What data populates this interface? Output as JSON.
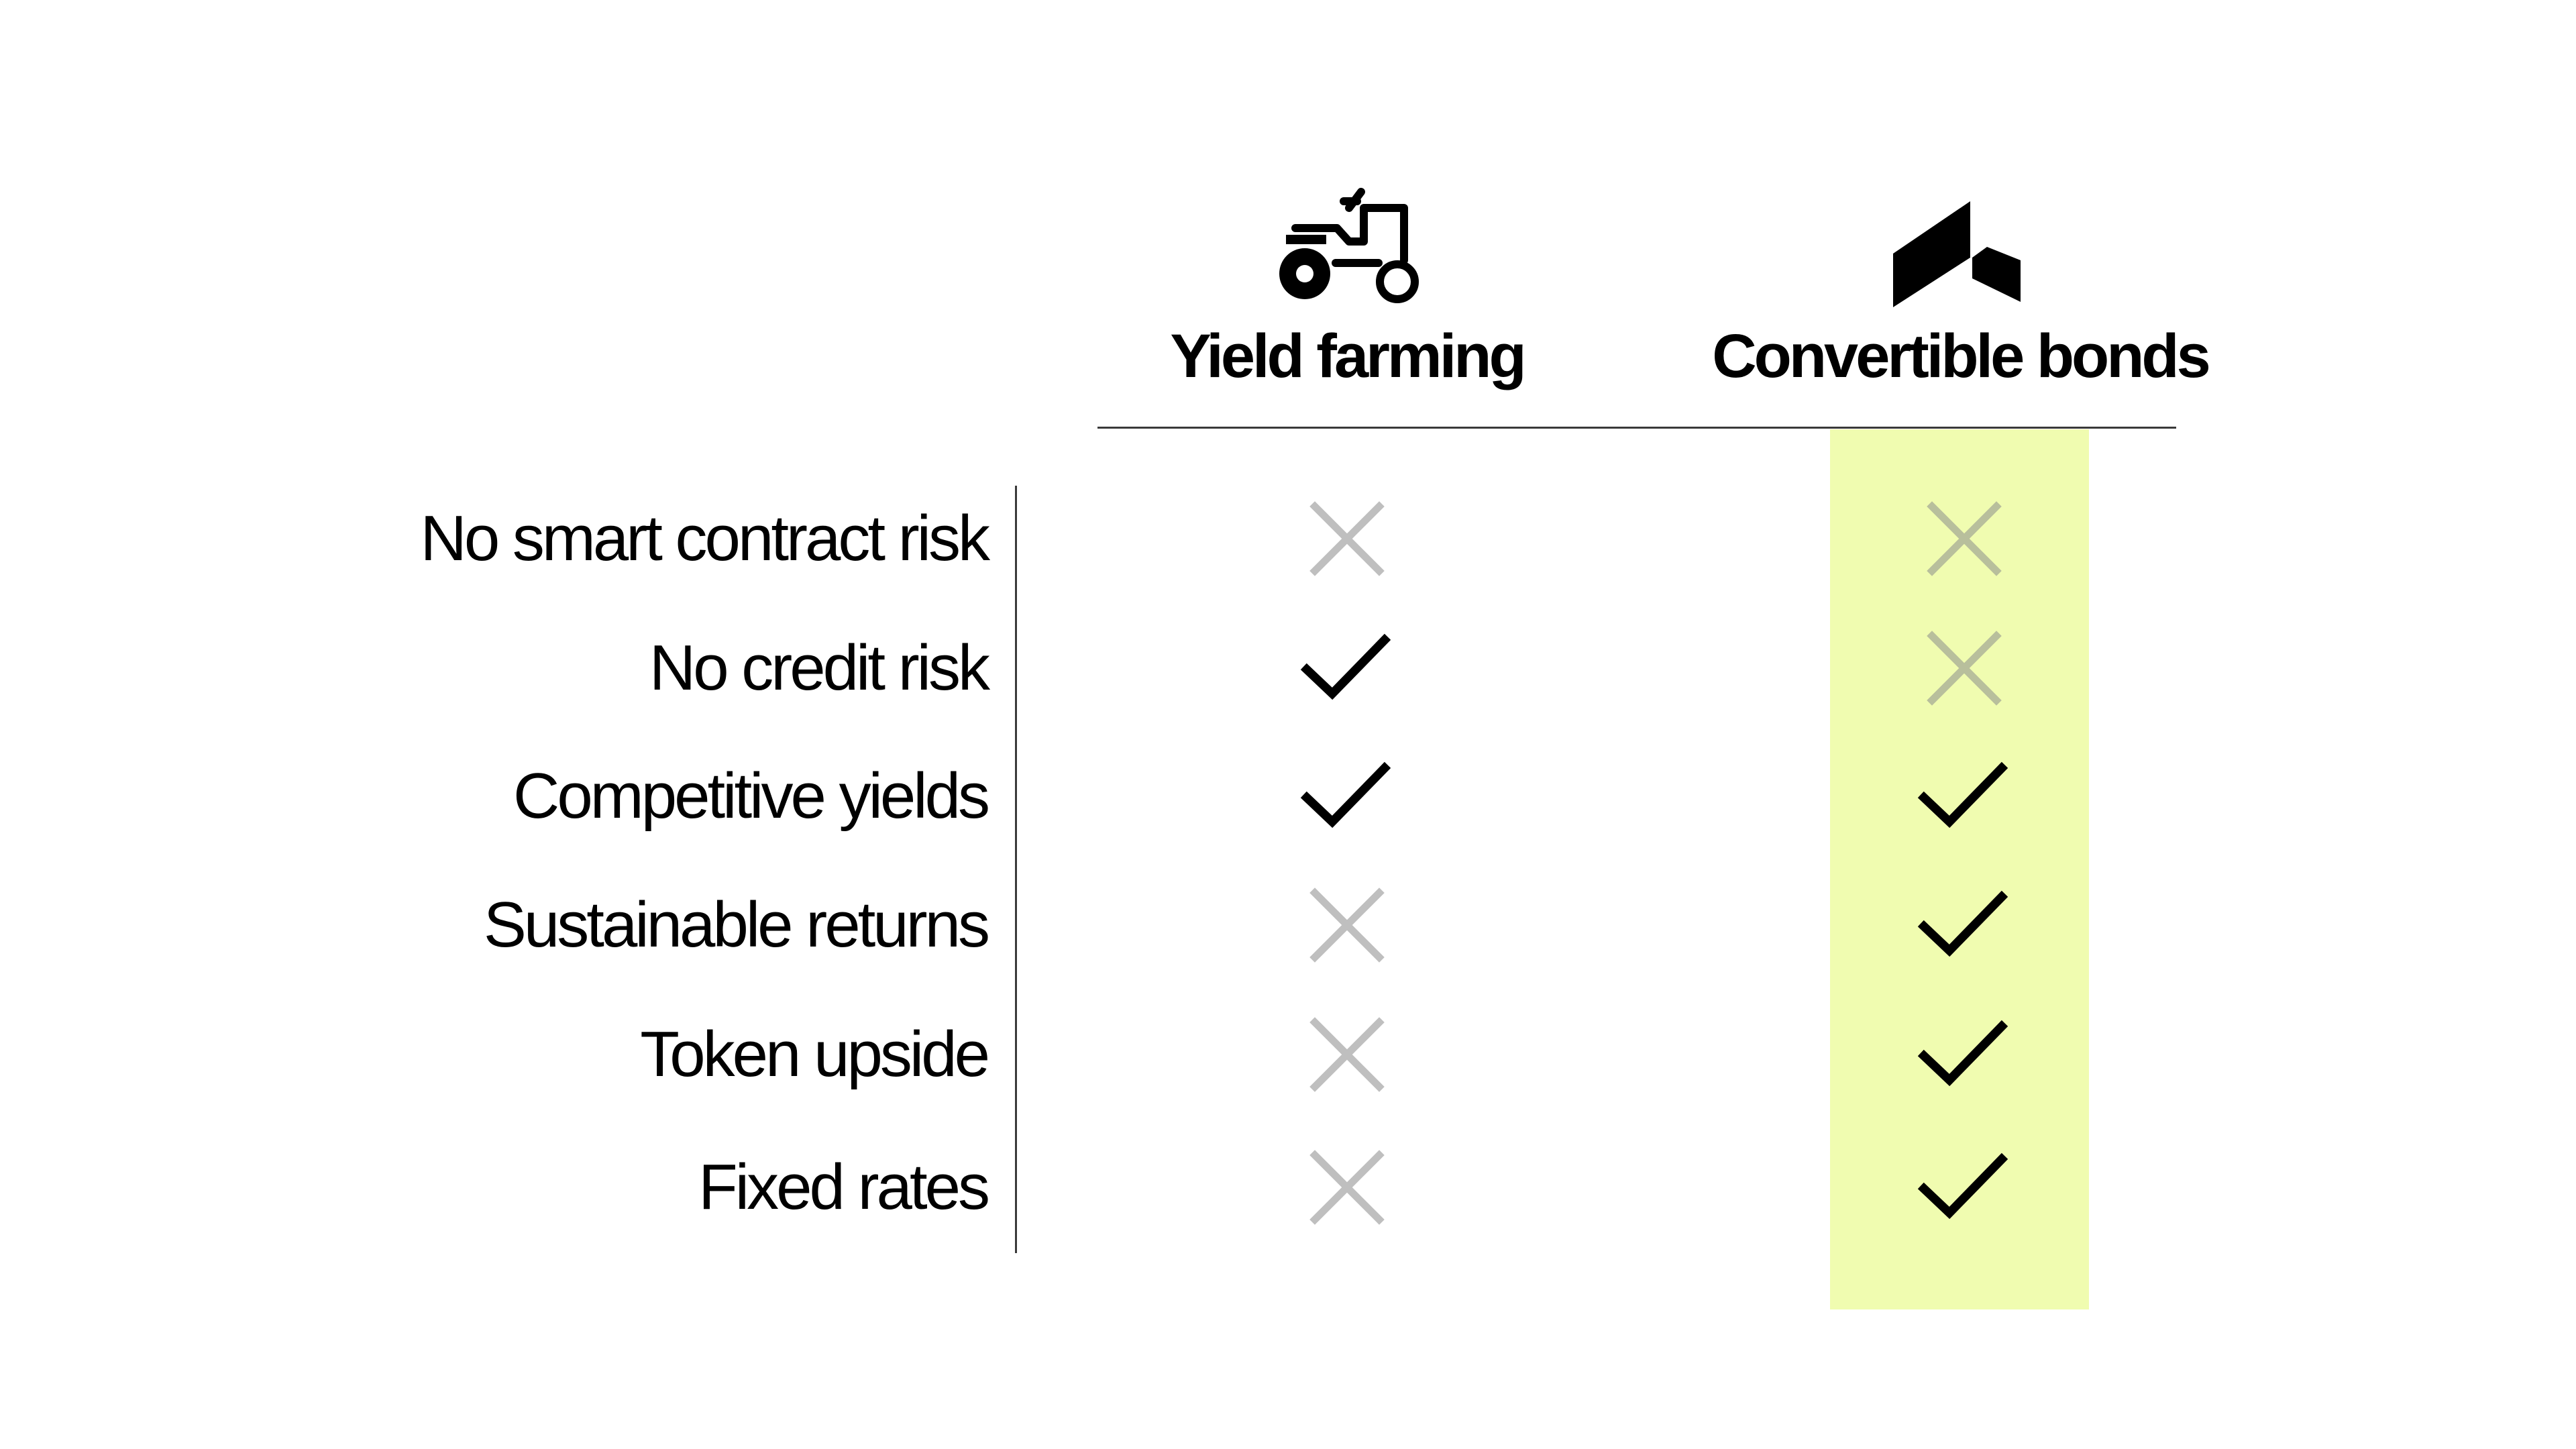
{
  "colors": {
    "highlight": "#f0fcb0",
    "check": "#000000",
    "cross": "#bfbfbf",
    "cross_on_highlight": "#b8bf9c",
    "rule": "#3a3a3a"
  },
  "columns": [
    {
      "title": "Yield farming",
      "icon": "tractor-icon"
    },
    {
      "title": "Convertible bonds",
      "icon": "logo-peak-icon"
    }
  ],
  "rows": [
    {
      "label": "No smart contract risk",
      "values": [
        "cross",
        "cross"
      ]
    },
    {
      "label": "No credit risk",
      "values": [
        "check",
        "cross"
      ]
    },
    {
      "label": "Competitive yields",
      "values": [
        "check",
        "check"
      ]
    },
    {
      "label": "Sustainable returns",
      "values": [
        "cross",
        "check"
      ]
    },
    {
      "label": "Token upside",
      "values": [
        "cross",
        "check"
      ]
    },
    {
      "label": "Fixed rates",
      "values": [
        "cross",
        "check"
      ]
    }
  ],
  "highlighted_column": "Convertible bonds"
}
